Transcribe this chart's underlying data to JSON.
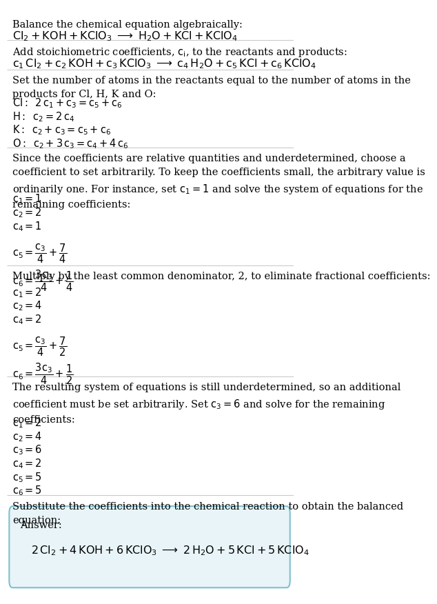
{
  "bg_color": "#ffffff",
  "text_color": "#000000",
  "answer_box_color": "#e8f4f8",
  "answer_box_border": "#7fbfcf",
  "fs": 10.5,
  "fs_chem": 11.5,
  "section1_title": "Balance the chemical equation algebraically:",
  "section1_eq": "$\\mathrm{Cl_2 + KOH + KClO_3 \\;\\longrightarrow\\; H_2O + KCl + KClO_4}$",
  "section2_title": "Add stoichiometric coefficients, $c_i$, to the reactants and products:",
  "section2_eq": "$c_1\\,\\mathrm{Cl_2} + c_2\\,\\mathrm{KOH} + c_3\\,\\mathrm{KClO_3} \\;\\longrightarrow\\; c_4\\,\\mathrm{H_2O} + c_5\\,\\mathrm{KCl} + c_6\\,\\mathrm{KClO_4}$",
  "section3_title": "Set the number of atoms in the reactants equal to the number of atoms in the\nproducts for Cl, H, K and O:",
  "section3_eqs": [
    "$\\mathrm{Cl:}\\;\\; 2\\,c_1 + c_3 = c_5 + c_6$",
    "$\\mathrm{H:}\\;\\; c_2 = 2\\,c_4$",
    "$\\mathrm{K:}\\;\\; c_2 + c_3 = c_5 + c_6$",
    "$\\mathrm{O:}\\;\\; c_2 + 3\\,c_3 = c_4 + 4\\,c_6$"
  ],
  "section4_title": "Since the coefficients are relative quantities and underdetermined, choose a\ncoefficient to set arbitrarily. To keep the coefficients small, the arbitrary value is\nordinarily one. For instance, set $c_1 = 1$ and solve the system of equations for the\nremaining coefficients:",
  "section4_eqs": [
    "$c_1 = 1$",
    "$c_2 = 2$",
    "$c_4 = 1$",
    "$c_5 = \\dfrac{c_3}{4} + \\dfrac{7}{4}$",
    "$c_6 = \\dfrac{3c_3}{4} + \\dfrac{1}{4}$"
  ],
  "section5_title": "Multiply by the least common denominator, 2, to eliminate fractional coefficients:",
  "section5_eqs": [
    "$c_1 = 2$",
    "$c_2 = 4$",
    "$c_4 = 2$",
    "$c_5 = \\dfrac{c_3}{4} + \\dfrac{7}{2}$",
    "$c_6 = \\dfrac{3c_3}{4} + \\dfrac{1}{2}$"
  ],
  "section6_title": "The resulting system of equations is still underdetermined, so an additional\ncoefficient must be set arbitrarily. Set $c_3 = 6$ and solve for the remaining\ncoefficients:",
  "section6_eqs": [
    "$c_1 = 2$",
    "$c_2 = 4$",
    "$c_3 = 6$",
    "$c_4 = 2$",
    "$c_5 = 5$",
    "$c_6 = 5$"
  ],
  "section7_title": "Substitute the coefficients into the chemical reaction to obtain the balanced\nequation:",
  "answer_label": "Answer:",
  "answer_eq": "$2\\,\\mathrm{Cl_2} + 4\\,\\mathrm{KOH} + 6\\,\\mathrm{KClO_3} \\;\\longrightarrow\\; 2\\,\\mathrm{H_2O} + 5\\,\\mathrm{KCl} + 5\\,\\mathrm{KClO_4}$"
}
